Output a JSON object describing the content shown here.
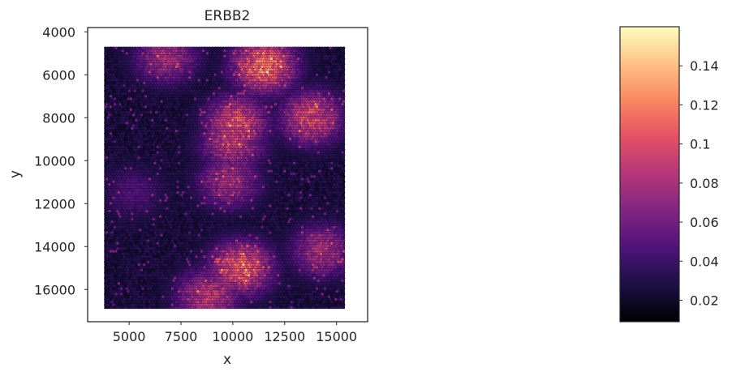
{
  "chart_data": {
    "type": "scatter",
    "title": "ERBB2",
    "xlabel": "x",
    "ylabel": "y",
    "xlim": [
      3000,
      16500
    ],
    "ylim": [
      17500,
      3800
    ],
    "y_inverted": true,
    "grid": false,
    "x_ticks": [
      5000,
      7500,
      10000,
      12500,
      15000
    ],
    "x_tick_labels": [
      "5000",
      "7500",
      "10000",
      "12500",
      "15000"
    ],
    "y_ticks": [
      4000,
      6000,
      8000,
      10000,
      12000,
      14000,
      16000
    ],
    "y_tick_labels": [
      "4000",
      "6000",
      "8000",
      "10000",
      "12000",
      "14000",
      "16000"
    ],
    "spot_extent": {
      "x": [
        3800,
        15400
      ],
      "y": [
        4700,
        16900
      ]
    },
    "colormap": "magma",
    "colorbar": {
      "range": [
        0.009,
        0.16
      ],
      "ticks": [
        0.02,
        0.04,
        0.06,
        0.08,
        0.1,
        0.12,
        0.14
      ],
      "tick_labels": [
        "0.02",
        "0.04",
        "0.06",
        "0.08",
        "0.1",
        "0.12",
        "0.14"
      ]
    },
    "hotspots": [
      {
        "region": "upper-right tissue",
        "x": 11500,
        "y": 5600,
        "value": 0.12
      },
      {
        "region": "right band",
        "x": 13800,
        "y": 8000,
        "value": 0.1
      },
      {
        "region": "central lobe",
        "x": 10200,
        "y": 8200,
        "value": 0.1
      },
      {
        "region": "central lower lobe",
        "x": 10000,
        "y": 9200,
        "value": 0.09
      },
      {
        "region": "upper-left patch",
        "x": 6800,
        "y": 5200,
        "value": 0.08
      },
      {
        "region": "mid lobe",
        "x": 9800,
        "y": 11000,
        "value": 0.08
      },
      {
        "region": "lower-middle cluster",
        "x": 10400,
        "y": 15000,
        "value": 0.11
      },
      {
        "region": "lower-left cluster",
        "x": 8800,
        "y": 16300,
        "value": 0.09
      },
      {
        "region": "lower-right region",
        "x": 14300,
        "y": 14200,
        "value": 0.08
      },
      {
        "region": "left background",
        "x": 5200,
        "y": 11500,
        "value": 0.05
      }
    ]
  },
  "colors": {
    "axis": "#262626",
    "magma_stops": [
      "#000004",
      "#1c1044",
      "#4f127b",
      "#812581",
      "#b5367a",
      "#e55064",
      "#fb8761",
      "#fec287",
      "#fcfdbf"
    ]
  }
}
